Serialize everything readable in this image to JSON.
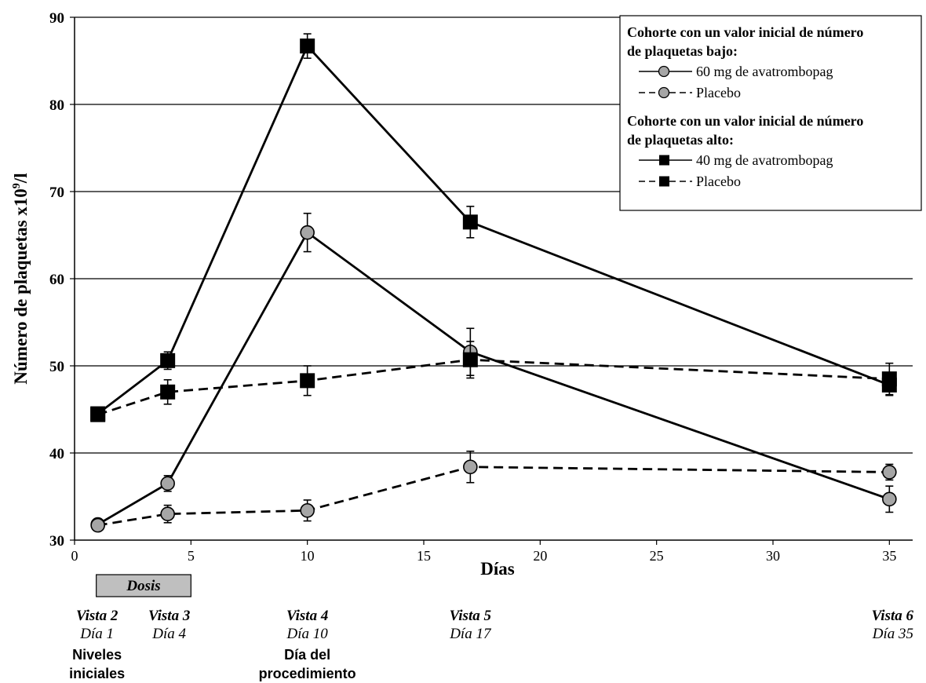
{
  "chart_data": {
    "type": "line",
    "xlabel": "Días",
    "ylabel": "Número de plaquetas x10⁹/l",
    "ylabel_parts": {
      "main": "Número de plaquetas x10",
      "sup": "9",
      "unit": "/l"
    },
    "xlim": [
      0,
      36
    ],
    "ylim": [
      30,
      90
    ],
    "xticks": [
      0,
      5,
      10,
      15,
      20,
      25,
      30,
      35
    ],
    "yticks": [
      30,
      40,
      50,
      60,
      70,
      80,
      90
    ],
    "grid": "horizontal",
    "legend_position": "top-right",
    "legend": {
      "groups": [
        {
          "heading": [
            "Cohorte con un valor inicial de número",
            "de plaquetas bajo:"
          ],
          "items": [
            {
              "label": "60 mg de avatrombopag",
              "dash": "solid",
              "marker": "circle"
            },
            {
              "label": "Placebo",
              "dash": "dashed",
              "marker": "circle"
            }
          ]
        },
        {
          "heading": [
            "Cohorte con un valor inicial de número",
            "de plaquetas alto:"
          ],
          "items": [
            {
              "label": "40 mg de avatrombopag",
              "dash": "solid",
              "marker": "square"
            },
            {
              "label": "Placebo",
              "dash": "dashed",
              "marker": "square"
            }
          ]
        }
      ]
    },
    "series": [
      {
        "name": "60 mg de avatrombopag",
        "cohort": "bajo",
        "marker": "circle",
        "dash": "solid",
        "x": [
          1,
          4,
          10,
          17,
          35
        ],
        "y": [
          31.8,
          36.5,
          65.3,
          51.6,
          34.7
        ],
        "error": [
          0.5,
          0.9,
          2.2,
          2.7,
          1.5
        ]
      },
      {
        "name": "Placebo",
        "cohort": "bajo",
        "marker": "circle",
        "dash": "dashed",
        "x": [
          1,
          4,
          10,
          17,
          35
        ],
        "y": [
          31.7,
          33.0,
          33.4,
          38.4,
          37.8
        ],
        "error": [
          0.4,
          1.0,
          1.2,
          1.8,
          0.9
        ]
      },
      {
        "name": "40 mg de avatrombopag",
        "cohort": "alto",
        "marker": "square",
        "dash": "solid",
        "x": [
          1,
          4,
          10,
          17,
          35
        ],
        "y": [
          44.5,
          50.6,
          86.7,
          66.5,
          47.8
        ],
        "error": [
          0.4,
          1.0,
          1.4,
          1.8,
          1.2
        ]
      },
      {
        "name": "Placebo",
        "cohort": "alto",
        "marker": "square",
        "dash": "dashed",
        "x": [
          1,
          4,
          10,
          17,
          35
        ],
        "y": [
          44.4,
          47.0,
          48.3,
          50.7,
          48.5
        ],
        "error": [
          0.4,
          1.4,
          1.7,
          2.1,
          1.8
        ]
      }
    ],
    "dosing_period": {
      "label": "Dosis",
      "x_start": 1,
      "x_end": 5
    },
    "visits": [
      {
        "x": 1,
        "visit": "Vista 2",
        "day": "Día 1",
        "note": [
          "Niveles",
          "iniciales"
        ]
      },
      {
        "x": 4,
        "visit": "Vista 3",
        "day": "Día 4"
      },
      {
        "x": 10,
        "visit": "Vista 4",
        "day": "Día 10",
        "note": [
          "Día del",
          "procedimiento"
        ]
      },
      {
        "x": 17,
        "visit": "Vista 5",
        "day": "Día 17"
      },
      {
        "x": 35,
        "visit": "Vista 6",
        "day": "Día 35"
      }
    ],
    "colors": {
      "line": "#000000",
      "circle_fill": "#a6a6a6",
      "square_fill": "#000000",
      "dose_box": "#bfbfbf",
      "grid": "#000000"
    }
  }
}
